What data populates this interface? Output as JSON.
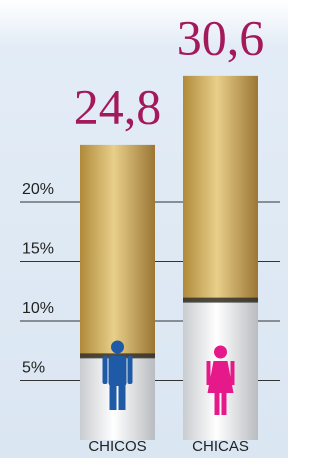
{
  "chart_data": {
    "type": "bar",
    "categories": [
      "CHICOS",
      "CHICAS"
    ],
    "values": [
      24.8,
      30.6
    ],
    "value_labels": [
      "24,8",
      "30,6"
    ],
    "ylim": [
      0,
      35
    ],
    "yticks": [
      {
        "value": 5,
        "label": "5%"
      },
      {
        "value": 10,
        "label": "10%"
      },
      {
        "value": 15,
        "label": "15%"
      },
      {
        "value": 20,
        "label": "20%"
      }
    ],
    "grid": true,
    "icon_colors": [
      "#1f5aa6",
      "#e6198a"
    ],
    "value_label_color": "#a3195b"
  }
}
